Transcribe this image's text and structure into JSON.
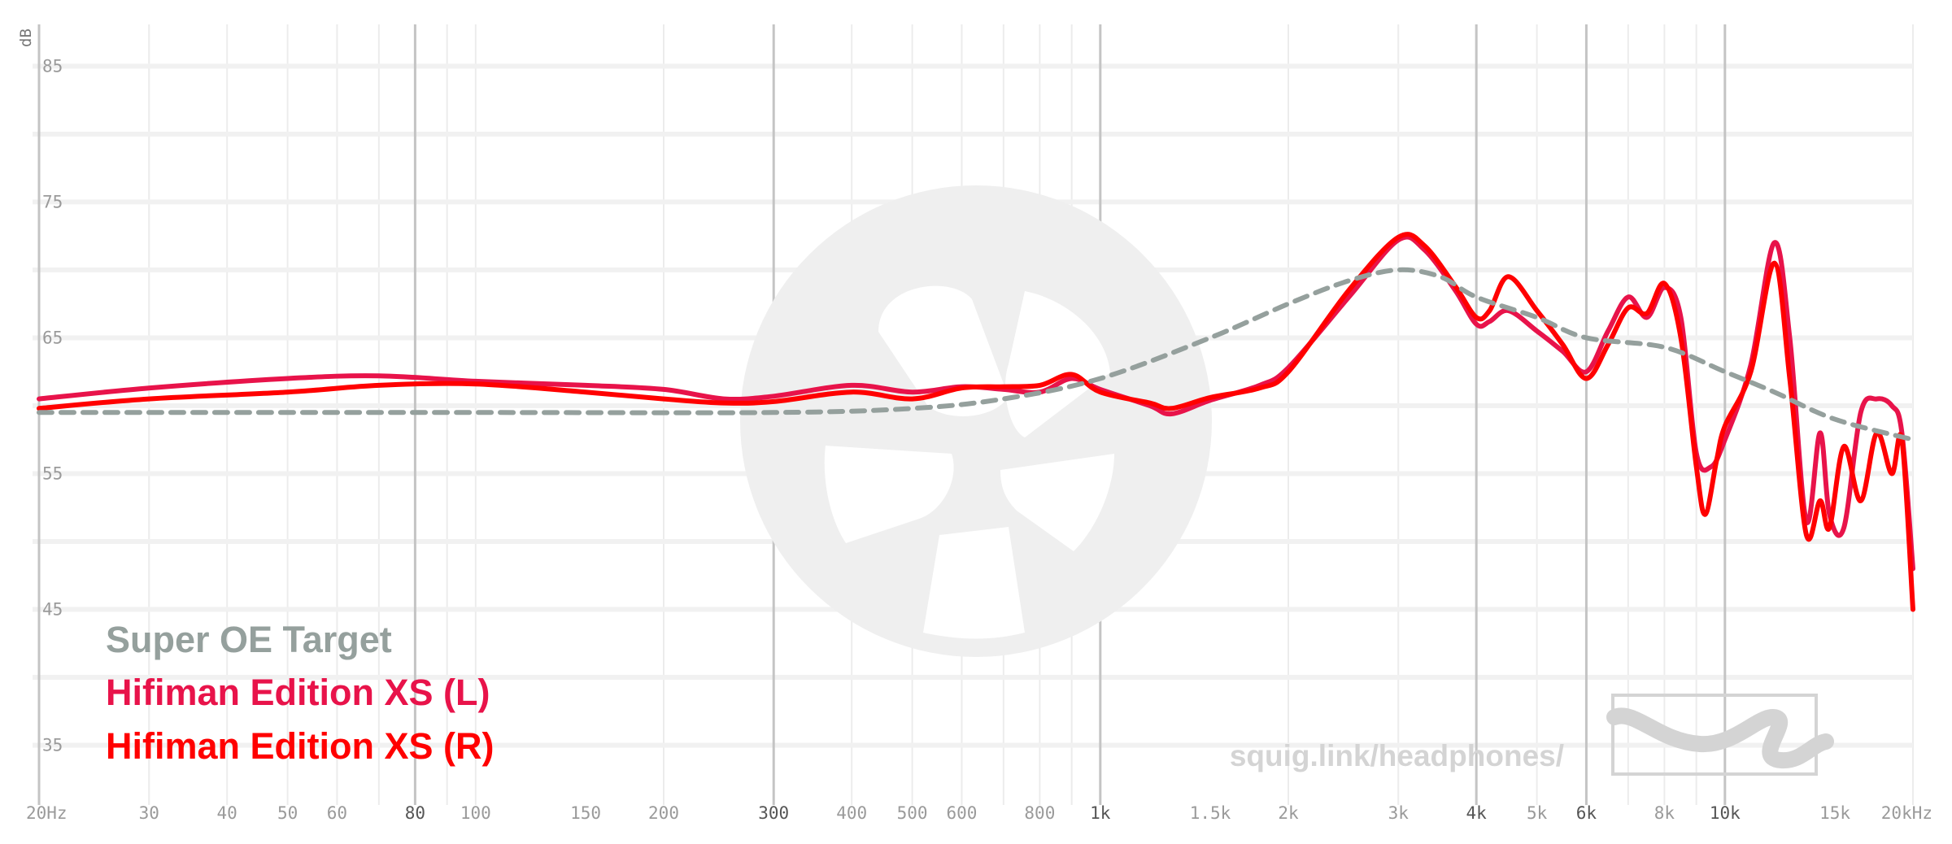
{
  "chart_data": {
    "type": "line",
    "xlabel": "",
    "ylabel": "dB",
    "x_scale": "log",
    "xlim": [
      20,
      20000
    ],
    "ylim": [
      30,
      87
    ],
    "grid": true,
    "legend_position": "bottom-left",
    "y_ticks": [
      "85",
      "75",
      "65",
      "55",
      "45",
      "35"
    ],
    "y_tick_values": [
      85,
      75,
      65,
      55,
      45,
      35
    ],
    "x_ticks": [
      {
        "label": "20Hz",
        "value": 20,
        "major": true
      },
      {
        "label": "30",
        "value": 30,
        "major": false
      },
      {
        "label": "40",
        "value": 40,
        "major": false
      },
      {
        "label": "50",
        "value": 50,
        "major": false
      },
      {
        "label": "60",
        "value": 60,
        "major": false
      },
      {
        "label": "80",
        "value": 80,
        "major": true
      },
      {
        "label": "100",
        "value": 100,
        "major": false
      },
      {
        "label": "150",
        "value": 150,
        "major": false
      },
      {
        "label": "200",
        "value": 200,
        "major": false
      },
      {
        "label": "300",
        "value": 300,
        "major": true
      },
      {
        "label": "400",
        "value": 400,
        "major": false
      },
      {
        "label": "500",
        "value": 500,
        "major": false
      },
      {
        "label": "600",
        "value": 600,
        "major": false
      },
      {
        "label": "800",
        "value": 800,
        "major": false
      },
      {
        "label": "1k",
        "value": 1000,
        "major": true
      },
      {
        "label": "1.5k",
        "value": 1500,
        "major": false
      },
      {
        "label": "2k",
        "value": 2000,
        "major": false
      },
      {
        "label": "3k",
        "value": 3000,
        "major": false
      },
      {
        "label": "4k",
        "value": 4000,
        "major": true
      },
      {
        "label": "5k",
        "value": 5000,
        "major": false
      },
      {
        "label": "6k",
        "value": 6000,
        "major": true
      },
      {
        "label": "8k",
        "value": 8000,
        "major": false
      },
      {
        "label": "10k",
        "value": 10000,
        "major": true
      },
      {
        "label": "15k",
        "value": 15000,
        "major": false
      },
      {
        "label": "20kHz",
        "value": 20000,
        "major": false
      }
    ],
    "series": [
      {
        "name": "Super OE Target",
        "color": "#95a09d",
        "dashed": true,
        "points": [
          [
            20,
            59.5
          ],
          [
            100,
            59.5
          ],
          [
            300,
            59.5
          ],
          [
            500,
            59.8
          ],
          [
            700,
            60.5
          ],
          [
            1000,
            62
          ],
          [
            1500,
            65
          ],
          [
            2000,
            67.5
          ],
          [
            2500,
            69.2
          ],
          [
            3000,
            70
          ],
          [
            3500,
            69.5
          ],
          [
            4000,
            68
          ],
          [
            5000,
            66.5
          ],
          [
            6000,
            65
          ],
          [
            8000,
            64.3
          ],
          [
            10000,
            62.5
          ],
          [
            12000,
            61
          ],
          [
            15000,
            59
          ],
          [
            20000,
            57.5
          ]
        ]
      },
      {
        "name": "Hifiman Edition XS (L)",
        "color": "#e8134a",
        "dashed": false,
        "points": [
          [
            20,
            60.5
          ],
          [
            30,
            61.3
          ],
          [
            50,
            62
          ],
          [
            70,
            62.2
          ],
          [
            100,
            61.8
          ],
          [
            150,
            61.5
          ],
          [
            200,
            61.2
          ],
          [
            250,
            60.5
          ],
          [
            300,
            60.7
          ],
          [
            400,
            61.5
          ],
          [
            500,
            61
          ],
          [
            600,
            61.4
          ],
          [
            700,
            61.2
          ],
          [
            800,
            61
          ],
          [
            900,
            62
          ],
          [
            1000,
            61.2
          ],
          [
            1200,
            60
          ],
          [
            1300,
            59.4
          ],
          [
            1500,
            60.4
          ],
          [
            1800,
            61.5
          ],
          [
            2000,
            62.8
          ],
          [
            2500,
            68
          ],
          [
            3000,
            72.2
          ],
          [
            3300,
            71.5
          ],
          [
            3700,
            68.5
          ],
          [
            4000,
            66
          ],
          [
            4200,
            66.2
          ],
          [
            4500,
            67
          ],
          [
            5000,
            65.5
          ],
          [
            5500,
            64
          ],
          [
            6000,
            62.5
          ],
          [
            6500,
            65.5
          ],
          [
            7000,
            68
          ],
          [
            7500,
            66.5
          ],
          [
            8000,
            68.7
          ],
          [
            8500,
            66.5
          ],
          [
            9000,
            56.5
          ],
          [
            9500,
            55.5
          ],
          [
            10000,
            57.5
          ],
          [
            11000,
            63
          ],
          [
            12000,
            72
          ],
          [
            12700,
            65
          ],
          [
            13500,
            51.5
          ],
          [
            14200,
            58
          ],
          [
            14700,
            52
          ],
          [
            15500,
            51
          ],
          [
            16500,
            59.5
          ],
          [
            17500,
            60.5
          ],
          [
            18500,
            60
          ],
          [
            19200,
            58
          ],
          [
            20000,
            48
          ]
        ]
      },
      {
        "name": "Hifiman Edition XS (R)",
        "color": "#ff0000",
        "dashed": false,
        "points": [
          [
            20,
            59.8
          ],
          [
            30,
            60.5
          ],
          [
            50,
            61
          ],
          [
            70,
            61.5
          ],
          [
            100,
            61.6
          ],
          [
            150,
            61
          ],
          [
            200,
            60.5
          ],
          [
            250,
            60.2
          ],
          [
            300,
            60.3
          ],
          [
            400,
            61
          ],
          [
            500,
            60.5
          ],
          [
            600,
            61.3
          ],
          [
            700,
            61.4
          ],
          [
            800,
            61.5
          ],
          [
            900,
            62.3
          ],
          [
            1000,
            61
          ],
          [
            1200,
            60.2
          ],
          [
            1300,
            59.8
          ],
          [
            1500,
            60.6
          ],
          [
            1800,
            61.3
          ],
          [
            2000,
            62.5
          ],
          [
            2500,
            68.5
          ],
          [
            3000,
            72.4
          ],
          [
            3300,
            71.8
          ],
          [
            3700,
            68.8
          ],
          [
            4000,
            66.5
          ],
          [
            4200,
            67
          ],
          [
            4500,
            69.5
          ],
          [
            5000,
            67
          ],
          [
            5500,
            64.5
          ],
          [
            6000,
            62
          ],
          [
            6500,
            64.5
          ],
          [
            7000,
            67.2
          ],
          [
            7500,
            66.8
          ],
          [
            8000,
            69
          ],
          [
            8500,
            65
          ],
          [
            9000,
            55.5
          ],
          [
            9300,
            52
          ],
          [
            9700,
            56
          ],
          [
            10000,
            58.5
          ],
          [
            11000,
            62.5
          ],
          [
            12000,
            70.5
          ],
          [
            12700,
            62
          ],
          [
            13500,
            50.5
          ],
          [
            14200,
            53
          ],
          [
            14700,
            51
          ],
          [
            15500,
            57
          ],
          [
            16500,
            53
          ],
          [
            17500,
            58
          ],
          [
            18500,
            55
          ],
          [
            19200,
            57.5
          ],
          [
            20000,
            45
          ]
        ]
      }
    ]
  },
  "watermark": {
    "url": "squig.link/headphones/"
  }
}
